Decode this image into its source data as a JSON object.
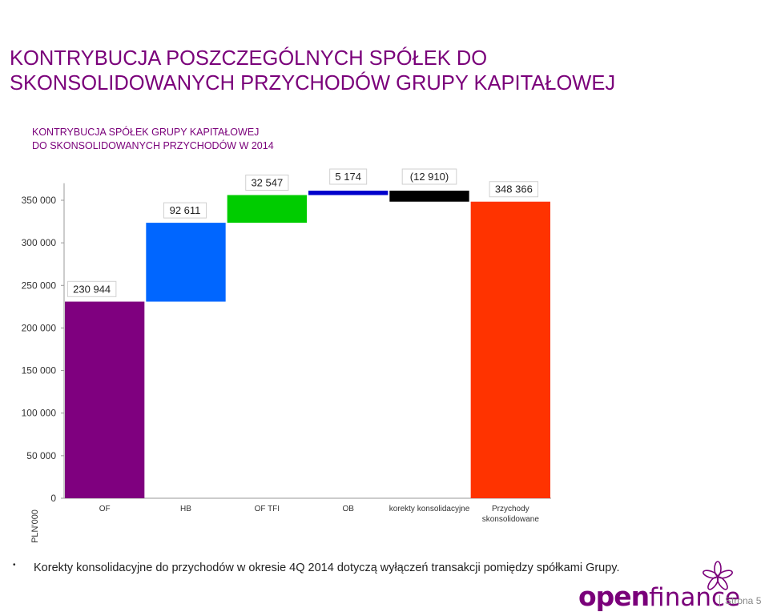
{
  "slide": {
    "title_line1": "KONTRYBUCJA POSZCZEGÓLNYCH SPÓŁEK DO",
    "title_line2": "SKONSOLIDOWANYCH PRZYCHODÓW GRUPY KAPITAŁOWEJ",
    "bullet": "Korekty konsolidacyjne do przychodów w okresie 4Q 2014 dotyczą wyłączeń transakcji pomiędzy spółkami Grupy.",
    "logo_part1": "open",
    "logo_part2": "finance",
    "page": "Strona 5"
  },
  "chart_data": {
    "type": "waterfall",
    "title_line1": "KONTRYBUCJA SPÓŁEK GRUPY KAPITAŁOWEJ",
    "title_line2": "DO SKONSOLIDOWANYCH PRZYCHODÓW W 2014",
    "ylabel": "PLN'000",
    "ylim": [
      0,
      370000
    ],
    "yticks": [
      0,
      50000,
      100000,
      150000,
      200000,
      250000,
      300000,
      350000
    ],
    "ytick_labels": [
      "0",
      "50 000",
      "100 000",
      "150 000",
      "200 000",
      "250 000",
      "300 000",
      "350 000"
    ],
    "bars": [
      {
        "category": "OF",
        "category_lines": [
          "OF"
        ],
        "base": 0,
        "value": 230944,
        "label": "230 944",
        "color": "#7f007f"
      },
      {
        "category": "HB",
        "category_lines": [
          "HB"
        ],
        "base": 230944,
        "value": 92611,
        "label": "92 611",
        "color": "#0066ff"
      },
      {
        "category": "OF TFI",
        "category_lines": [
          "OF TFI"
        ],
        "base": 323555,
        "value": 32547,
        "label": "32 547",
        "color": "#00cc00"
      },
      {
        "category": "OB",
        "category_lines": [
          "OB"
        ],
        "base": 356102,
        "value": 5174,
        "label": "5 174",
        "color": "#0000cc"
      },
      {
        "category": "korekty konsolidacyjne",
        "category_lines": [
          "korekty konsolidacyjne"
        ],
        "base": 361276,
        "value": -12910,
        "label": "(12 910)",
        "color": "#000000"
      },
      {
        "category": "Przychody skonsolidowane",
        "category_lines": [
          "Przychody",
          "skonsolidowane"
        ],
        "base": 0,
        "value": 348366,
        "label": "348 366",
        "color": "#ff3300"
      }
    ]
  }
}
